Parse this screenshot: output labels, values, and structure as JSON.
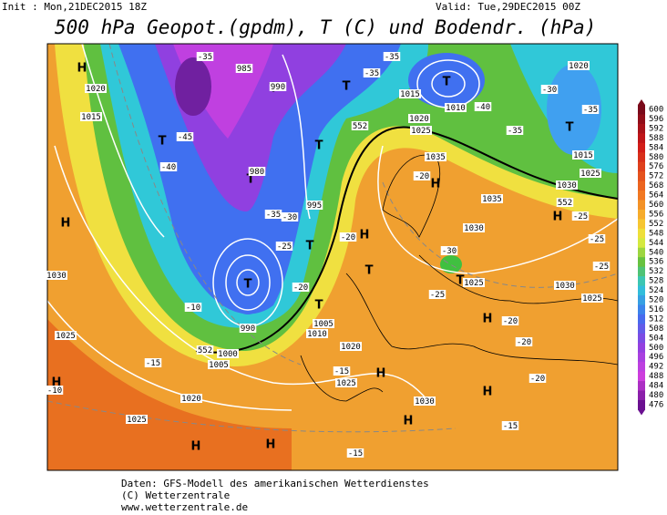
{
  "header": {
    "init": "Init : Mon,21DEC2015 18Z",
    "valid": "Valid: Tue,29DEC2015 00Z",
    "title": "500 hPa Geopot.(gpdm), T (C) und Bodendr. (hPa)"
  },
  "colorbar": {
    "labels": [
      600,
      596,
      592,
      588,
      584,
      580,
      576,
      572,
      568,
      564,
      560,
      556,
      552,
      548,
      544,
      540,
      536,
      532,
      528,
      524,
      520,
      516,
      512,
      508,
      504,
      500,
      496,
      492,
      488,
      484,
      480,
      476
    ]
  },
  "map": {
    "pressure_centers": [
      "H",
      "H",
      "H",
      "H",
      "H",
      "H",
      "H",
      "H",
      "H",
      "H",
      "H",
      "H",
      "T",
      "T",
      "T",
      "T",
      "T",
      "T",
      "T",
      "T",
      "T",
      "T",
      "T",
      "T"
    ],
    "isobar_labels": [
      "1020",
      "1015",
      "1030",
      "1025",
      "1020",
      "1025",
      "1005",
      "1000",
      "990",
      "995",
      "1005",
      "1010",
      "1020",
      "1025",
      "1030",
      "1035",
      "1030",
      "1025",
      "1030",
      "1025",
      "1015",
      "1020",
      "1025",
      "1035",
      "1020",
      "1015",
      "1025",
      "1030",
      "1010",
      "985",
      "990",
      "980"
    ],
    "temperature_labels": [
      "-35",
      "-45",
      "-40",
      "-35",
      "-30",
      "-25",
      "-20",
      "-10",
      "-15",
      "-10",
      "-20",
      "-30",
      "-25",
      "-20",
      "-20",
      "-15",
      "-20",
      "-15",
      "-15",
      "-25",
      "-25",
      "-25",
      "-20",
      "-35",
      "-40",
      "-35",
      "-30",
      "-35",
      "-35"
    ],
    "height_labels": [
      "552",
      "552",
      "552"
    ]
  },
  "footer": {
    "lines": [
      "Daten: GFS-Modell des amerikanischen Wetterdienstes",
      "(C) Wetterzentrale",
      "www.wetterzentrale.de"
    ]
  }
}
